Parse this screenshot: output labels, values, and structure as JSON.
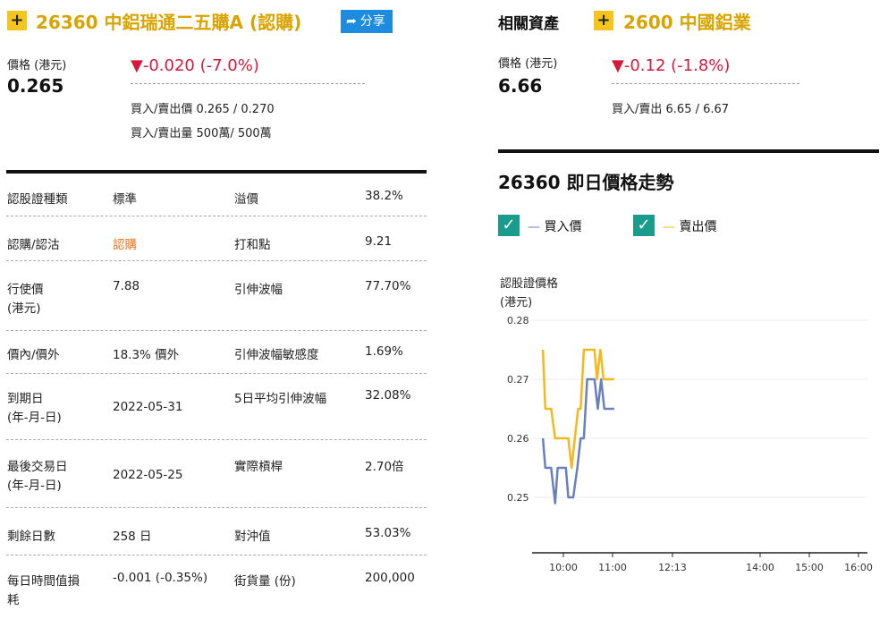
{
  "warrant": {
    "plus_icon": "+",
    "title": "26360 中鋁瑞通二五購A (認購)",
    "share_label": "分享",
    "price_label": "價格 (港元)",
    "price": "0.265",
    "change": "▼-0.020 (-7.0%)",
    "bid_ask_price_label": "買入/賣出價",
    "bid_ask_price": "0.265 / 0.270",
    "bid_ask_volume_label": "買入/賣出量",
    "bid_ask_volume": "500萬/ 500萬"
  },
  "related": {
    "section_label": "相關資產",
    "plus_icon": "+",
    "title": "2600 中國鋁業",
    "price_label": "價格 (港元)",
    "price": "6.66",
    "change": "▼-0.12 (-1.8%)",
    "bid_ask_label": "買入/賣出",
    "bid_ask": "6.65 / 6.67"
  },
  "info_rows": [
    {
      "l1": "認股證種類",
      "l1b": "",
      "v1": "標準",
      "v1_accent": false,
      "l2": "溢價",
      "v2": "38.2%"
    },
    {
      "l1": "認購/認沽",
      "l1b": "",
      "v1": "認購",
      "v1_accent": true,
      "l2": "打和點",
      "v2": "9.21"
    },
    {
      "l1": "行使價",
      "l1b": "(港元)",
      "v1": "7.88",
      "v1_accent": false,
      "l2": "引伸波幅",
      "v2": "77.70%"
    },
    {
      "l1": "價內/價外",
      "l1b": "",
      "v1": "18.3% 價外",
      "v1_accent": false,
      "l2": "引伸波幅敏感度",
      "v2": "1.69%"
    },
    {
      "l1": "到期日",
      "l1b": "(年-月-日)",
      "v1": "2022-05-31",
      "v1_accent": false,
      "l2": "5日平均引伸波幅",
      "v2": "32.08%"
    },
    {
      "l1": "最後交易日",
      "l1b": "(年-月-日)",
      "v1": "2022-05-25",
      "v1_accent": false,
      "l2": "實際槓桿",
      "v2": "2.70倍"
    },
    {
      "l1": "剩餘日數",
      "l1b": "",
      "v1": "258 日",
      "v1_accent": false,
      "l2": "對沖值",
      "v2": "53.03%"
    },
    {
      "l1": "每日時間值損",
      "l1b": "耗",
      "v1": "-0.001 (-0.35%)",
      "v1_accent": false,
      "l2": "街貨量 (份)",
      "v2": "200,000"
    }
  ],
  "chart_section": {
    "title": "26360 即日價格走勢",
    "legend_bid": "買入價",
    "legend_ask": "賣出價",
    "checkbox_glyph": "✓",
    "dash_glyph": "—"
  },
  "chart_data": {
    "type": "line",
    "ylabel": "認股證價格",
    "ylabel2": "(港元)",
    "ylim": [
      0.245,
      0.28
    ],
    "yticks": [
      "0.28",
      "0.27",
      "0.26",
      "0.25"
    ],
    "ytick_values": [
      0.28,
      0.27,
      0.26,
      0.25
    ],
    "xticks": [
      "10:00",
      "11:00",
      "12:13",
      "14:00",
      "15:00",
      "16:00"
    ],
    "xtick_minutes": [
      600,
      660,
      733,
      840,
      900,
      960
    ],
    "colors": {
      "bid": "#6a7fbf",
      "ask": "#f4b81c"
    },
    "series": [
      {
        "name": "買入價",
        "color": "#6a7fbf",
        "points": [
          [
            575,
            0.26
          ],
          [
            578,
            0.255
          ],
          [
            585,
            0.255
          ],
          [
            590,
            0.249
          ],
          [
            593,
            0.255
          ],
          [
            603,
            0.255
          ],
          [
            606,
            0.25
          ],
          [
            612,
            0.25
          ],
          [
            617,
            0.255
          ],
          [
            621,
            0.26
          ],
          [
            625,
            0.26
          ],
          [
            629,
            0.27
          ],
          [
            638,
            0.27
          ],
          [
            642,
            0.265
          ],
          [
            646,
            0.27
          ],
          [
            650,
            0.265
          ],
          [
            662,
            0.265
          ]
        ]
      },
      {
        "name": "賣出價",
        "color": "#f4b81c",
        "points": [
          [
            575,
            0.275
          ],
          [
            578,
            0.265
          ],
          [
            585,
            0.265
          ],
          [
            590,
            0.26
          ],
          [
            603,
            0.26
          ],
          [
            606,
            0.26
          ],
          [
            610,
            0.255
          ],
          [
            614,
            0.26
          ],
          [
            618,
            0.265
          ],
          [
            621,
            0.265
          ],
          [
            625,
            0.275
          ],
          [
            638,
            0.275
          ],
          [
            641,
            0.27
          ],
          [
            645,
            0.275
          ],
          [
            649,
            0.27
          ],
          [
            662,
            0.27
          ]
        ]
      }
    ]
  }
}
